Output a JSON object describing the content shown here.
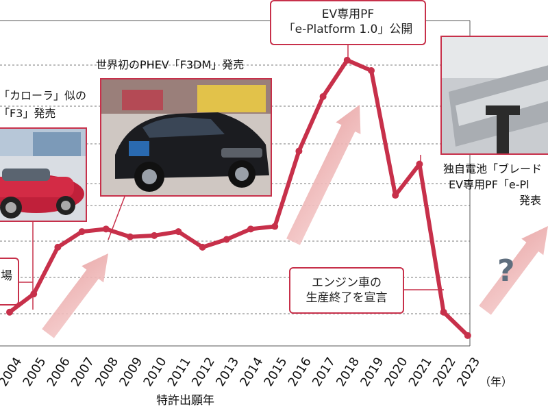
{
  "chart_data": {
    "type": "line",
    "x": [
      "2004",
      "2005",
      "2006",
      "2007",
      "2008",
      "2009",
      "2010",
      "2011",
      "2012",
      "2013",
      "2014",
      "2015",
      "2016",
      "2017",
      "2018",
      "2019",
      "2020",
      "2021",
      "2022",
      "2023"
    ],
    "values": [
      13,
      20,
      38,
      44,
      45,
      42,
      42.5,
      44,
      38,
      41,
      45,
      46,
      75,
      96,
      110,
      106,
      58,
      70,
      13,
      4
    ],
    "ylim": [
      0,
      130
    ],
    "grid": "horizontal-dashed",
    "xlabel": "特許出願年",
    "x_unit": "（年）",
    "color": "#c7304a",
    "annotations": [
      {
        "id": "f3_lines",
        "lines": [
          "「カローラ」似の",
          "「F3」発売"
        ]
      },
      {
        "id": "f3dm",
        "lines": [
          "世界初のPHEV「F3DM」発売"
        ]
      },
      {
        "id": "eplatform",
        "lines": [
          "EV専用PF",
          "「e-Platform 1.0」公開"
        ]
      },
      {
        "id": "blade",
        "lines": [
          "独自電池「ブレード",
          "EV専用PF「e-Pl",
          "発表"
        ]
      },
      {
        "id": "engine_end",
        "lines": [
          "エンジン車の",
          "生産終了を宣言"
        ]
      },
      {
        "id": "left_partial",
        "lines": [
          "場",
          ""
        ]
      }
    ],
    "question_mark": "?"
  }
}
